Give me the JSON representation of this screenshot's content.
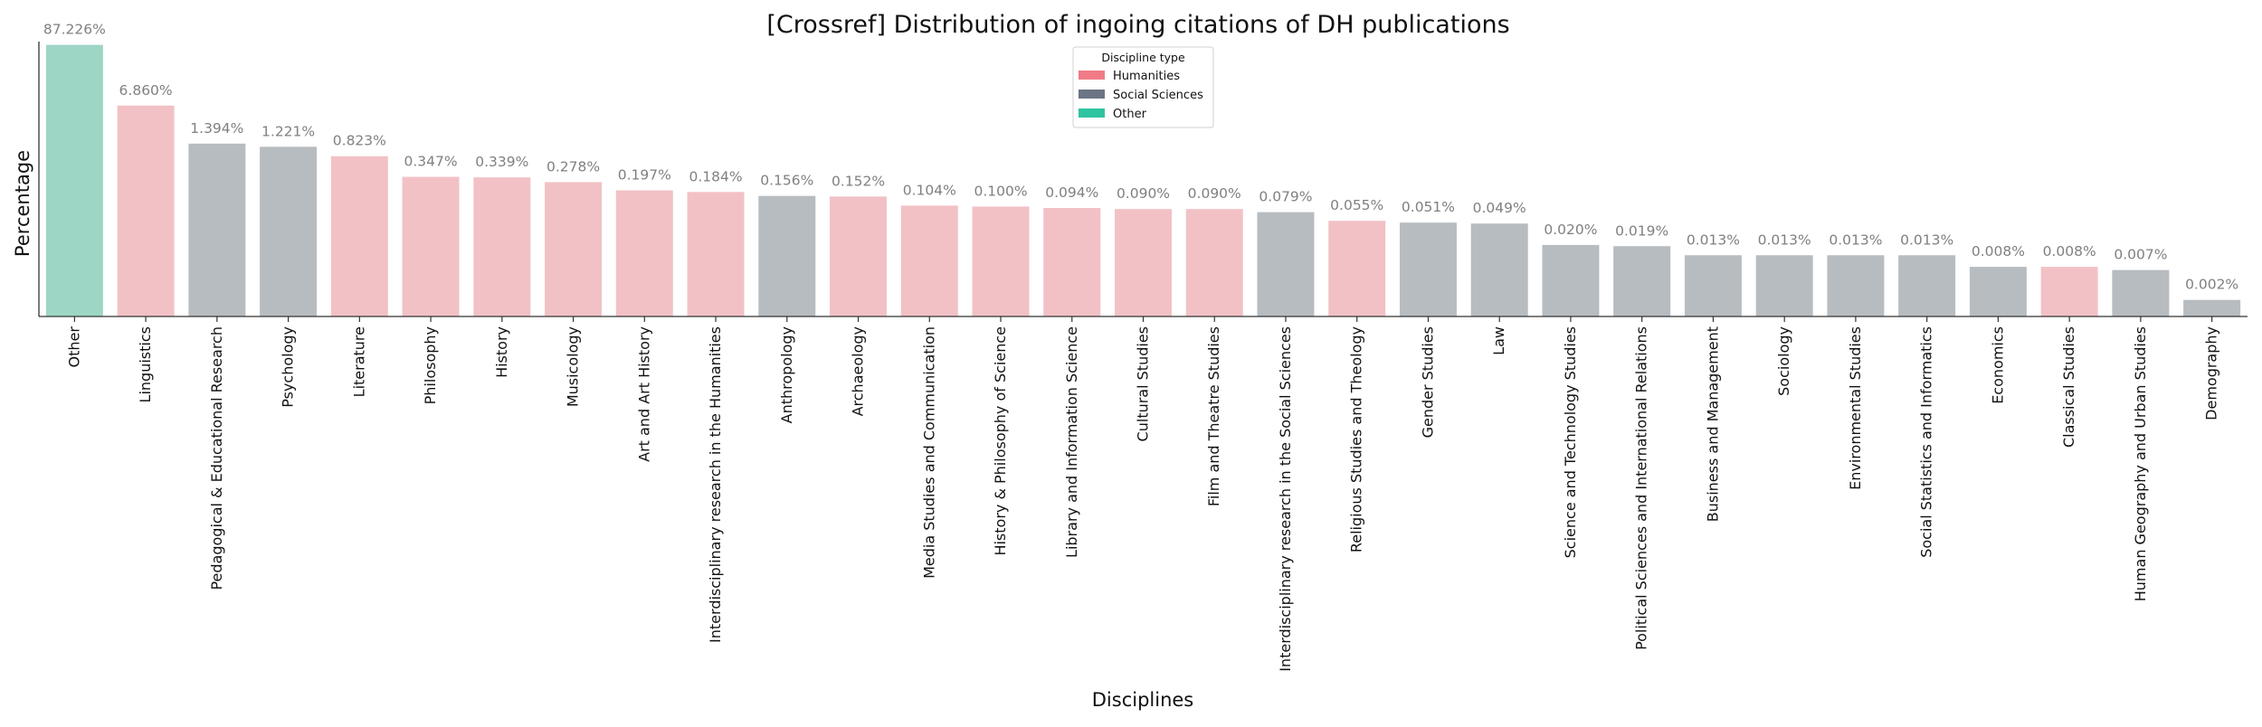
{
  "chart_data": {
    "type": "bar",
    "title": "[Crossref] Distribution of ingoing citations of DH publications",
    "xlabel": "Disciplines",
    "ylabel": "Percentage",
    "scale": "log",
    "ylim": [
      0.001,
      100
    ],
    "grid": false,
    "legend": {
      "title": "Discipline type",
      "placement": "top-center",
      "entries": [
        {
          "label": "Humanities",
          "color": "#f07b86"
        },
        {
          "label": "Social Sciences",
          "color": "#6b7585"
        },
        {
          "label": "Other",
          "color": "#2ec4a0"
        }
      ]
    },
    "colors": {
      "Humanities": "#f2c1c6",
      "Social Sciences": "#b7bcc1",
      "Other": "#9ed6c6"
    },
    "categories": [
      "Other",
      "Linguistics",
      "Pedagogical & Educational Research",
      "Psychology",
      "Literature",
      "Philosophy",
      "History",
      "Musicology",
      "Art and Art History",
      "Interdisciplinary research in the Humanities",
      "Anthropology",
      "Archaeology",
      "Media Studies and Communication",
      "History & Philosophy of Science",
      "Library and Information Science",
      "Cultural Studies",
      "Film and Theatre Studies",
      "Interdisciplinary research in the Social Sciences",
      "Religious Studies and Theology",
      "Gender Studies",
      "Law",
      "Science and Technology Studies",
      "Political Sciences and International Relations",
      "Business and Management",
      "Sociology",
      "Environmental Studies",
      "Social Statistics and Informatics",
      "Economics",
      "Classical Studies",
      "Human Geography and Urban Studies",
      "Demography"
    ],
    "values": [
      87.226,
      6.86,
      1.394,
      1.221,
      0.823,
      0.347,
      0.339,
      0.278,
      0.197,
      0.184,
      0.156,
      0.152,
      0.104,
      0.1,
      0.094,
      0.09,
      0.09,
      0.079,
      0.055,
      0.051,
      0.049,
      0.02,
      0.019,
      0.013,
      0.013,
      0.013,
      0.013,
      0.008,
      0.008,
      0.007,
      0.002
    ],
    "labels": [
      "87.226%",
      "6.860%",
      "1.394%",
      "1.221%",
      "0.823%",
      "0.347%",
      "0.339%",
      "0.278%",
      "0.197%",
      "0.184%",
      "0.156%",
      "0.152%",
      "0.104%",
      "0.100%",
      "0.094%",
      "0.090%",
      "0.090%",
      "0.079%",
      "0.055%",
      "0.051%",
      "0.049%",
      "0.020%",
      "0.019%",
      "0.013%",
      "0.013%",
      "0.013%",
      "0.013%",
      "0.008%",
      "0.008%",
      "0.007%",
      "0.002%"
    ],
    "types": [
      "Other",
      "Humanities",
      "Social Sciences",
      "Social Sciences",
      "Humanities",
      "Humanities",
      "Humanities",
      "Humanities",
      "Humanities",
      "Humanities",
      "Social Sciences",
      "Humanities",
      "Humanities",
      "Humanities",
      "Humanities",
      "Humanities",
      "Humanities",
      "Social Sciences",
      "Humanities",
      "Social Sciences",
      "Social Sciences",
      "Social Sciences",
      "Social Sciences",
      "Social Sciences",
      "Social Sciences",
      "Social Sciences",
      "Social Sciences",
      "Social Sciences",
      "Humanities",
      "Social Sciences",
      "Social Sciences"
    ]
  }
}
